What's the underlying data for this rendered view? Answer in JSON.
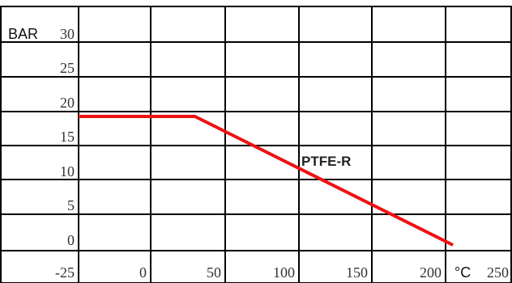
{
  "chart_data": {
    "type": "line",
    "ylabel": "BAR",
    "xlabel": "°C",
    "x_ticks": [
      "-25",
      "0",
      "50",
      "100",
      "150",
      "200",
      "250"
    ],
    "y_ticks": [
      "30",
      "25",
      "20",
      "15",
      "10",
      "5",
      "0"
    ],
    "xlim": [
      -25,
      250
    ],
    "ylim": [
      0,
      30
    ],
    "grid": true,
    "series": [
      {
        "name": "PTFE-R",
        "color": "#ee1111",
        "points": [
          [
            -25,
            19
          ],
          [
            0,
            19
          ],
          [
            30,
            19
          ],
          [
            205,
            0
          ]
        ]
      }
    ]
  }
}
